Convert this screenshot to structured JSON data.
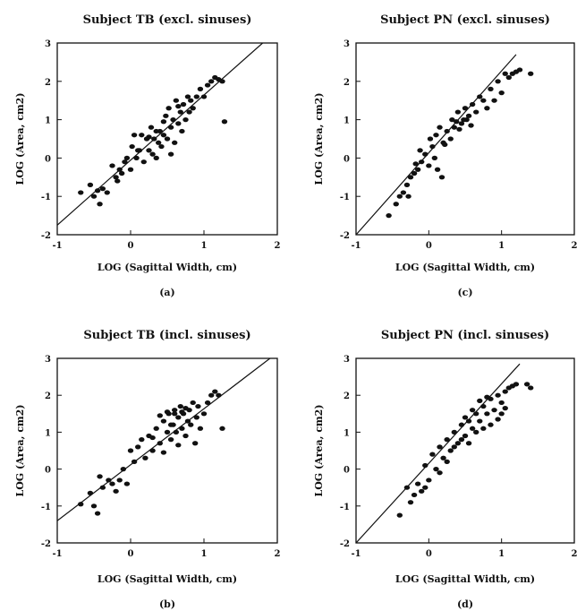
{
  "chart_data": [
    {
      "type": "scatter",
      "title": "Subject TB (excl. sinuses)",
      "xlabel": "LOG (Sagittal Width, cm)",
      "ylabel": "LOG (Area, cm2)",
      "caption": "(a)",
      "xlim": [
        -1,
        2
      ],
      "ylim": [
        -2,
        3
      ],
      "xticks": [
        "-1",
        "0",
        "1",
        "2"
      ],
      "yticks": [
        "-2",
        "-1",
        "0",
        "1",
        "2",
        "3"
      ],
      "grid": false,
      "fit_line": [
        [
          -1.0,
          -1.75
        ],
        [
          1.8,
          3.0
        ]
      ],
      "points": [
        [
          -0.68,
          -0.9
        ],
        [
          -0.55,
          -0.7
        ],
        [
          -0.5,
          -1.0
        ],
        [
          -0.45,
          -0.85
        ],
        [
          -0.42,
          -1.2
        ],
        [
          -0.38,
          -0.8
        ],
        [
          -0.32,
          -0.9
        ],
        [
          -0.25,
          -0.2
        ],
        [
          -0.2,
          -0.5
        ],
        [
          -0.18,
          -0.6
        ],
        [
          -0.12,
          -0.4
        ],
        [
          -0.08,
          -0.1
        ],
        [
          -0.05,
          0.0
        ],
        [
          0.0,
          -0.3
        ],
        [
          0.02,
          0.3
        ],
        [
          0.05,
          0.6
        ],
        [
          0.08,
          0.0
        ],
        [
          0.12,
          0.2
        ],
        [
          0.15,
          0.6
        ],
        [
          0.18,
          -0.1
        ],
        [
          0.22,
          0.5
        ],
        [
          0.25,
          0.2
        ],
        [
          0.28,
          0.8
        ],
        [
          0.3,
          0.1
        ],
        [
          0.32,
          0.5
        ],
        [
          0.35,
          0.0
        ],
        [
          0.38,
          0.4
        ],
        [
          0.4,
          0.7
        ],
        [
          0.42,
          0.3
        ],
        [
          0.45,
          0.6
        ],
        [
          0.48,
          1.1
        ],
        [
          0.5,
          0.5
        ],
        [
          0.52,
          1.3
        ],
        [
          0.55,
          0.8
        ],
        [
          0.58,
          1.0
        ],
        [
          0.6,
          0.4
        ],
        [
          0.62,
          1.5
        ],
        [
          0.65,
          0.9
        ],
        [
          0.68,
          1.2
        ],
        [
          0.7,
          0.7
        ],
        [
          0.72,
          1.4
        ],
        [
          0.75,
          1.0
        ],
        [
          0.78,
          1.6
        ],
        [
          0.8,
          1.2
        ],
        [
          0.82,
          1.5
        ],
        [
          0.85,
          1.3
        ],
        [
          0.9,
          1.6
        ],
        [
          0.95,
          1.8
        ],
        [
          1.0,
          1.6
        ],
        [
          1.05,
          1.9
        ],
        [
          1.1,
          2.0
        ],
        [
          1.15,
          2.1
        ],
        [
          1.2,
          2.05
        ],
        [
          1.25,
          2.0
        ],
        [
          1.28,
          0.95
        ],
        [
          0.35,
          0.7
        ],
        [
          0.55,
          0.1
        ],
        [
          0.65,
          1.35
        ],
        [
          0.45,
          0.95
        ],
        [
          0.25,
          0.55
        ],
        [
          0.1,
          0.2
        ],
        [
          -0.15,
          -0.3
        ]
      ]
    },
    {
      "type": "scatter",
      "title": "Subject TB (incl. sinuses)",
      "xlabel": "LOG (Sagittal Width, cm)",
      "ylabel": "LOG (Area, cm2)",
      "caption": "(b)",
      "xlim": [
        -1,
        2
      ],
      "ylim": [
        -2,
        3
      ],
      "xticks": [
        "-1",
        "0",
        "1",
        "2"
      ],
      "yticks": [
        "-2",
        "-1",
        "0",
        "1",
        "2",
        "3"
      ],
      "grid": false,
      "fit_line": [
        [
          -1.0,
          -1.4
        ],
        [
          1.9,
          3.0
        ]
      ],
      "points": [
        [
          -0.68,
          -0.95
        ],
        [
          -0.55,
          -0.65
        ],
        [
          -0.5,
          -1.0
        ],
        [
          -0.45,
          -1.2
        ],
        [
          -0.42,
          -0.2
        ],
        [
          -0.38,
          -0.5
        ],
        [
          -0.3,
          -0.3
        ],
        [
          -0.25,
          -0.4
        ],
        [
          -0.2,
          -0.6
        ],
        [
          -0.15,
          -0.3
        ],
        [
          -0.1,
          0.0
        ],
        [
          -0.05,
          -0.4
        ],
        [
          0.0,
          0.5
        ],
        [
          0.05,
          0.2
        ],
        [
          0.1,
          0.6
        ],
        [
          0.15,
          0.8
        ],
        [
          0.2,
          0.3
        ],
        [
          0.25,
          0.9
        ],
        [
          0.3,
          0.5
        ],
        [
          0.35,
          1.1
        ],
        [
          0.4,
          0.7
        ],
        [
          0.45,
          1.3
        ],
        [
          0.5,
          1.0
        ],
        [
          0.52,
          1.5
        ],
        [
          0.55,
          0.8
        ],
        [
          0.58,
          1.2
        ],
        [
          0.6,
          1.6
        ],
        [
          0.62,
          1.0
        ],
        [
          0.65,
          1.4
        ],
        [
          0.68,
          1.7
        ],
        [
          0.7,
          1.1
        ],
        [
          0.72,
          1.5
        ],
        [
          0.75,
          0.9
        ],
        [
          0.78,
          1.3
        ],
        [
          0.8,
          1.6
        ],
        [
          0.82,
          1.2
        ],
        [
          0.85,
          1.8
        ],
        [
          0.88,
          0.7
        ],
        [
          0.9,
          1.4
        ],
        [
          0.92,
          1.7
        ],
        [
          0.95,
          1.1
        ],
        [
          1.0,
          1.5
        ],
        [
          1.05,
          1.8
        ],
        [
          1.1,
          2.0
        ],
        [
          1.15,
          2.1
        ],
        [
          1.2,
          2.0
        ],
        [
          1.25,
          1.1
        ],
        [
          0.4,
          1.45
        ],
        [
          0.5,
          1.55
        ],
        [
          0.6,
          1.5
        ],
        [
          0.7,
          1.55
        ],
        [
          0.3,
          0.85
        ],
        [
          0.45,
          0.45
        ],
        [
          0.65,
          0.65
        ],
        [
          0.55,
          1.2
        ],
        [
          0.75,
          1.65
        ]
      ]
    },
    {
      "type": "scatter",
      "title": "Subject PN (excl. sinuses)",
      "xlabel": "LOG (Sagittal Width, cm)",
      "ylabel": "LOG (Area, cm2)",
      "caption": "(c)",
      "xlim": [
        -1,
        2
      ],
      "ylim": [
        -2,
        3
      ],
      "xticks": [
        "-1",
        "0",
        "1",
        "2"
      ],
      "yticks": [
        "-2",
        "-1",
        "0",
        "1",
        "2",
        "3"
      ],
      "grid": false,
      "fit_line": [
        [
          -1.0,
          -2.0
        ],
        [
          1.2,
          2.7
        ]
      ],
      "points": [
        [
          -0.55,
          -1.5
        ],
        [
          -0.45,
          -1.2
        ],
        [
          -0.4,
          -1.0
        ],
        [
          -0.35,
          -0.9
        ],
        [
          -0.3,
          -0.7
        ],
        [
          -0.28,
          -1.0
        ],
        [
          -0.25,
          -0.5
        ],
        [
          -0.2,
          -0.4
        ],
        [
          -0.15,
          -0.3
        ],
        [
          -0.12,
          0.2
        ],
        [
          -0.1,
          -0.1
        ],
        [
          -0.05,
          0.1
        ],
        [
          0.0,
          -0.2
        ],
        [
          0.02,
          0.5
        ],
        [
          0.05,
          0.3
        ],
        [
          0.08,
          0.0
        ],
        [
          0.1,
          0.6
        ],
        [
          0.12,
          -0.3
        ],
        [
          0.15,
          0.8
        ],
        [
          0.18,
          -0.5
        ],
        [
          0.2,
          0.4
        ],
        [
          0.25,
          0.7
        ],
        [
          0.3,
          0.5
        ],
        [
          0.32,
          1.0
        ],
        [
          0.35,
          0.8
        ],
        [
          0.4,
          1.2
        ],
        [
          0.45,
          0.9
        ],
        [
          0.5,
          1.3
        ],
        [
          0.52,
          1.0
        ],
        [
          0.55,
          1.1
        ],
        [
          0.6,
          1.4
        ],
        [
          0.65,
          1.2
        ],
        [
          0.7,
          1.6
        ],
        [
          0.75,
          1.5
        ],
        [
          0.8,
          1.3
        ],
        [
          0.85,
          1.8
        ],
        [
          0.9,
          1.5
        ],
        [
          0.95,
          2.0
        ],
        [
          1.0,
          1.7
        ],
        [
          1.05,
          2.2
        ],
        [
          1.1,
          2.1
        ],
        [
          1.15,
          2.2
        ],
        [
          1.2,
          2.25
        ],
        [
          1.25,
          2.3
        ],
        [
          1.4,
          2.2
        ],
        [
          0.42,
          0.75
        ],
        [
          0.48,
          1.0
        ],
        [
          0.38,
          0.95
        ],
        [
          0.22,
          0.35
        ],
        [
          0.58,
          0.85
        ],
        [
          -0.18,
          -0.15
        ]
      ]
    },
    {
      "type": "scatter",
      "title": "Subject PN (incl. sinuses)",
      "xlabel": "LOG (Sagittal Width, cm)",
      "ylabel": "LOG (Area, cm2)",
      "caption": "(d)",
      "xlim": [
        -1,
        2
      ],
      "ylim": [
        -2,
        3
      ],
      "xticks": [
        "-1",
        "0",
        "1",
        "2"
      ],
      "yticks": [
        "-2",
        "-1",
        "0",
        "1",
        "2",
        "3"
      ],
      "grid": false,
      "fit_line": [
        [
          -1.0,
          -2.0
        ],
        [
          1.25,
          2.85
        ]
      ],
      "points": [
        [
          -0.4,
          -1.25
        ],
        [
          -0.3,
          -0.5
        ],
        [
          -0.25,
          -0.9
        ],
        [
          -0.2,
          -0.7
        ],
        [
          -0.15,
          -0.4
        ],
        [
          -0.1,
          -0.6
        ],
        [
          -0.05,
          0.1
        ],
        [
          0.0,
          -0.3
        ],
        [
          0.05,
          0.4
        ],
        [
          0.1,
          0.0
        ],
        [
          0.15,
          0.6
        ],
        [
          0.2,
          0.3
        ],
        [
          0.25,
          0.8
        ],
        [
          0.3,
          0.5
        ],
        [
          0.35,
          1.0
        ],
        [
          0.4,
          0.7
        ],
        [
          0.45,
          1.2
        ],
        [
          0.5,
          0.9
        ],
        [
          0.55,
          1.3
        ],
        [
          0.6,
          1.1
        ],
        [
          0.65,
          1.5
        ],
        [
          0.7,
          1.3
        ],
        [
          0.75,
          1.7
        ],
        [
          0.8,
          1.5
        ],
        [
          0.85,
          1.9
        ],
        [
          0.9,
          1.6
        ],
        [
          0.95,
          2.0
        ],
        [
          1.0,
          1.8
        ],
        [
          1.05,
          2.1
        ],
        [
          1.1,
          2.2
        ],
        [
          1.15,
          2.25
        ],
        [
          1.2,
          2.3
        ],
        [
          1.35,
          2.3
        ],
        [
          1.4,
          2.2
        ],
        [
          0.55,
          0.7
        ],
        [
          0.65,
          1.0
        ],
        [
          0.75,
          1.1
        ],
        [
          0.85,
          1.2
        ],
        [
          0.95,
          1.35
        ],
        [
          0.45,
          0.8
        ],
        [
          0.35,
          0.6
        ],
        [
          0.5,
          1.4
        ],
        [
          0.6,
          1.6
        ],
        [
          0.7,
          1.85
        ],
        [
          0.8,
          1.95
        ],
        [
          0.25,
          0.2
        ],
        [
          0.15,
          -0.1
        ],
        [
          -0.05,
          -0.5
        ],
        [
          1.0,
          1.5
        ],
        [
          1.05,
          1.65
        ]
      ]
    }
  ]
}
